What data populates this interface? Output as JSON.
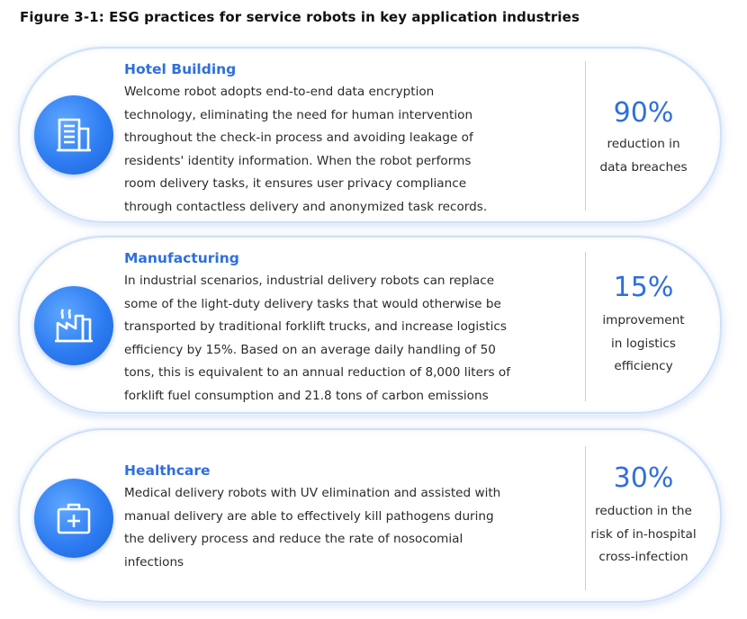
{
  "title": "Figure 3-1: ESG practices for service robots in key application industries",
  "cards": [
    {
      "heading": "Hotel Building",
      "icon": "building-icon",
      "lines": [
        "Welcome robot adopts end-to-end data encryption",
        "technology, eliminating the need for human intervention",
        "throughout the check-in process and avoiding leakage of",
        "residents' identity information. When the robot performs",
        "room delivery tasks, it ensures user privacy compliance",
        "through contactless delivery and anonymized task records."
      ],
      "stat_value": "90%",
      "stat_lines": [
        "reduction in",
        "data breaches"
      ]
    },
    {
      "heading": "Manufacturing",
      "icon": "factory-icon",
      "lines": [
        "In industrial scenarios, industrial delivery robots can replace",
        "some of the light-duty delivery tasks that would otherwise be",
        "transported by traditional forklift trucks, and increase logistics",
        "efficiency by 15%. Based on an average daily handling of 50",
        "tons, this is equivalent to an annual reduction of 8,000 liters of",
        "forklift fuel consumption and 21.8 tons of carbon emissions"
      ],
      "stat_value": "15%",
      "stat_lines": [
        "improvement",
        "in logistics",
        "efficiency"
      ]
    },
    {
      "heading": "Healthcare",
      "icon": "medical-kit-icon",
      "lines": [
        "Medical delivery robots with UV elimination and assisted with",
        "manual delivery are able to effectively kill pathogens during",
        "the delivery process and reduce the rate of nosocomial",
        "infections"
      ],
      "stat_value": "30%",
      "stat_lines": [
        "reduction in the",
        "risk of in-hospital",
        "cross-infection"
      ]
    }
  ]
}
